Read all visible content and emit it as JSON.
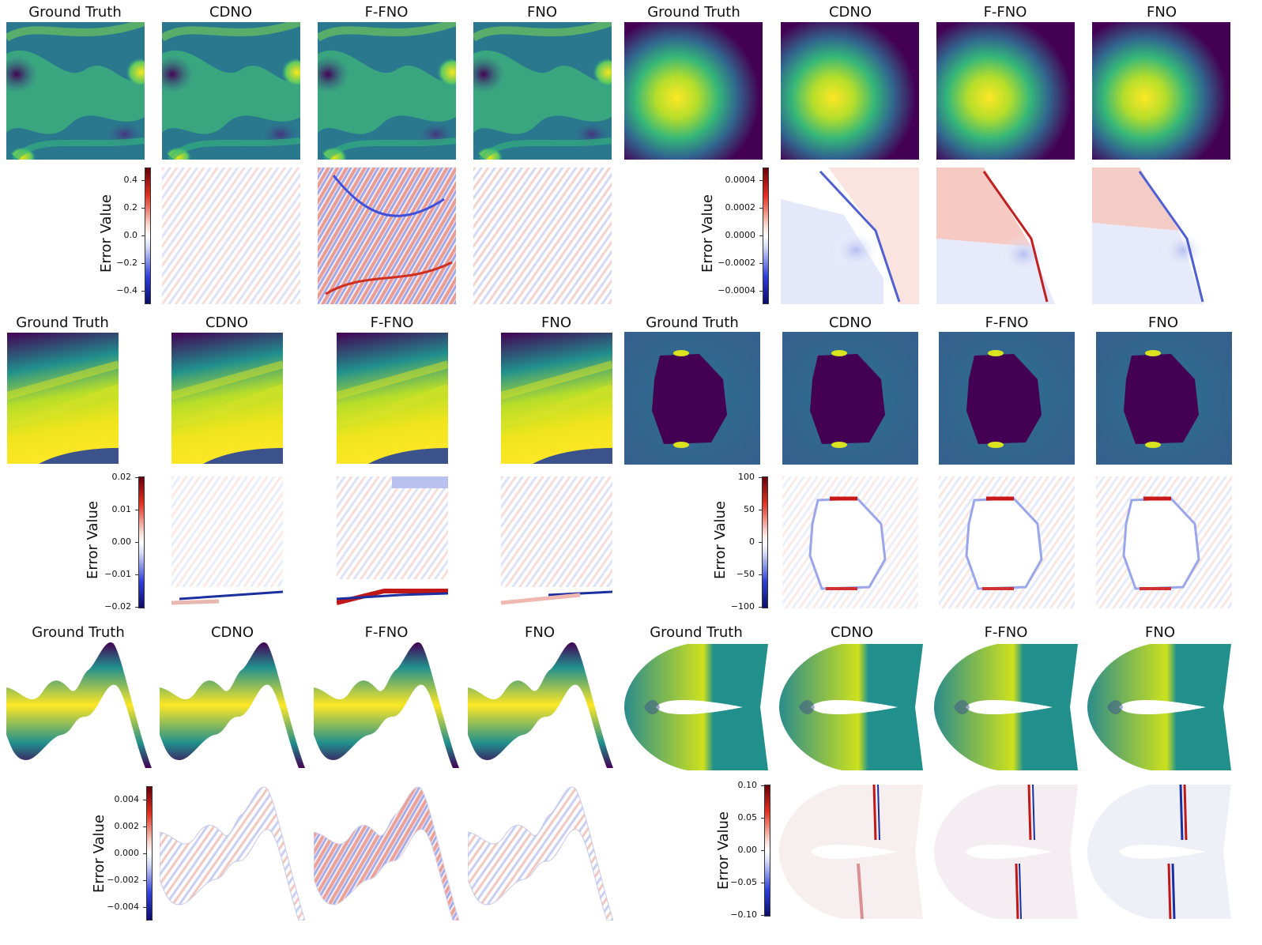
{
  "titles": {
    "gt": "Ground Truth",
    "cdno": "CDNO",
    "ffno": "F-FNO",
    "fno": "FNO"
  },
  "error_label": "Error Value",
  "colorbars": {
    "row1_left": [
      "0.4",
      "0.2",
      "0.0",
      "−0.2",
      "−0.4"
    ],
    "row1_right": [
      "0.0004",
      "0.0002",
      "0.0000",
      "−0.0002",
      "−0.0004"
    ],
    "row2_left": [
      "0.02",
      "0.01",
      "0.00",
      "−0.01",
      "−0.02"
    ],
    "row2_right": [
      "100",
      "50",
      "0",
      "−50",
      "−100"
    ],
    "row3_left": [
      "0.004",
      "0.002",
      "0.000",
      "−0.002",
      "−0.004"
    ],
    "row3_right": [
      "0.10",
      "0.05",
      "0.00",
      "−0.05",
      "−0.10"
    ]
  }
}
